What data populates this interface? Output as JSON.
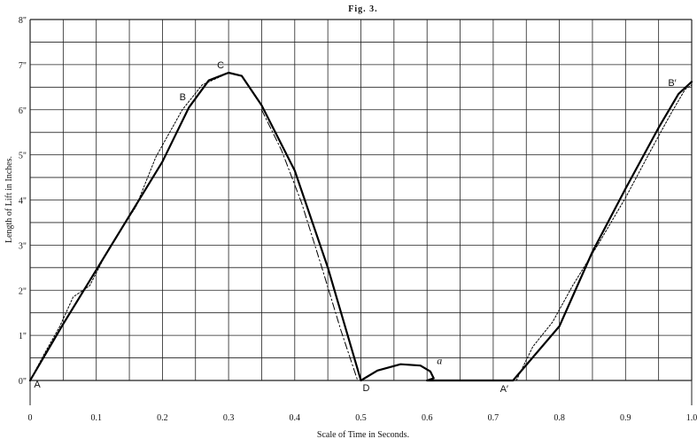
{
  "chart_data": {
    "type": "line",
    "title": "Fig. 3.",
    "xlabel": "Scale of Time in Seconds.",
    "ylabel": "Length of Lift in Inches.",
    "xlim": [
      0,
      1.0
    ],
    "ylim": [
      0,
      8
    ],
    "grid": true,
    "x_ticks": [
      {
        "value": 0,
        "label": "0"
      },
      {
        "value": 0.1,
        "label": "0.1"
      },
      {
        "value": 0.2,
        "label": "0.2"
      },
      {
        "value": 0.3,
        "label": "0.3"
      },
      {
        "value": 0.4,
        "label": "0.4"
      },
      {
        "value": 0.5,
        "label": "0.5"
      },
      {
        "value": 0.6,
        "label": "0.6"
      },
      {
        "value": 0.7,
        "label": "0.7"
      },
      {
        "value": 0.8,
        "label": "0.8"
      },
      {
        "value": 0.9,
        "label": "0.9"
      },
      {
        "value": 1.0,
        "label": "1.0"
      }
    ],
    "y_ticks": [
      {
        "value": 0,
        "label": "0\""
      },
      {
        "value": 1,
        "label": "1\""
      },
      {
        "value": 2,
        "label": "2\""
      },
      {
        "value": 3,
        "label": "3\""
      },
      {
        "value": 4,
        "label": "4\""
      },
      {
        "value": 5,
        "label": "5\""
      },
      {
        "value": 6,
        "label": "6\""
      },
      {
        "value": 7,
        "label": "7\""
      },
      {
        "value": 8,
        "label": "8\""
      }
    ],
    "series": [
      {
        "style": "solid",
        "color": "#000000",
        "points": [
          [
            0,
            0
          ],
          [
            0.05,
            1.25
          ],
          [
            0.1,
            2.45
          ],
          [
            0.15,
            3.65
          ],
          [
            0.2,
            4.85
          ],
          [
            0.24,
            6.05
          ],
          [
            0.27,
            6.65
          ],
          [
            0.3,
            6.82
          ],
          [
            0.32,
            6.75
          ],
          [
            0.35,
            6.1
          ],
          [
            0.4,
            4.65
          ],
          [
            0.45,
            2.5
          ],
          [
            0.5,
            0
          ],
          [
            0.525,
            0.22
          ],
          [
            0.56,
            0.36
          ],
          [
            0.59,
            0.33
          ],
          [
            0.605,
            0.2
          ],
          [
            0.61,
            0.05
          ],
          [
            0.6,
            0
          ],
          [
            0.62,
            0
          ],
          [
            0.73,
            0
          ],
          [
            0.8,
            1.2
          ],
          [
            0.85,
            2.85
          ],
          [
            0.9,
            4.25
          ],
          [
            0.95,
            5.6
          ],
          [
            0.98,
            6.35
          ],
          [
            1.0,
            6.62
          ]
        ]
      },
      {
        "style": "dotted",
        "color": "#000000",
        "points": [
          [
            0,
            0
          ],
          [
            0.02,
            0.55
          ],
          [
            0.045,
            1.2
          ],
          [
            0.065,
            1.85
          ],
          [
            0.09,
            2.1
          ],
          [
            0.12,
            2.95
          ],
          [
            0.16,
            3.85
          ],
          [
            0.19,
            4.95
          ],
          [
            0.23,
            6.0
          ],
          [
            0.26,
            6.55
          ],
          [
            0.29,
            6.75
          ]
        ]
      },
      {
        "style": "dotted",
        "color": "#000000",
        "points": [
          [
            0.735,
            0
          ],
          [
            0.76,
            0.75
          ],
          [
            0.79,
            1.3
          ],
          [
            0.82,
            2.1
          ],
          [
            0.86,
            3.05
          ],
          [
            0.9,
            4.05
          ],
          [
            0.94,
            5.15
          ],
          [
            0.97,
            5.95
          ],
          [
            0.99,
            6.45
          ],
          [
            1.0,
            6.55
          ]
        ]
      },
      {
        "style": "dashdot",
        "color": "#000000",
        "points": [
          [
            0.35,
            6.0
          ],
          [
            0.38,
            5.1
          ],
          [
            0.41,
            3.95
          ],
          [
            0.44,
            2.55
          ],
          [
            0.47,
            1.1
          ],
          [
            0.495,
            0
          ]
        ]
      }
    ],
    "annotations": [
      {
        "text": "A",
        "x": 0,
        "y": 0
      },
      {
        "text": "B",
        "x": 0.24,
        "y": 6.05
      },
      {
        "text": "C",
        "x": 0.3,
        "y": 6.82
      },
      {
        "text": "D",
        "x": 0.5,
        "y": 0
      },
      {
        "text": "a",
        "x": 0.6,
        "y": 0.25,
        "italic": true
      },
      {
        "text": "A′",
        "x": 0.73,
        "y": 0
      },
      {
        "text": "B′",
        "x": 0.98,
        "y": 6.35
      }
    ]
  }
}
